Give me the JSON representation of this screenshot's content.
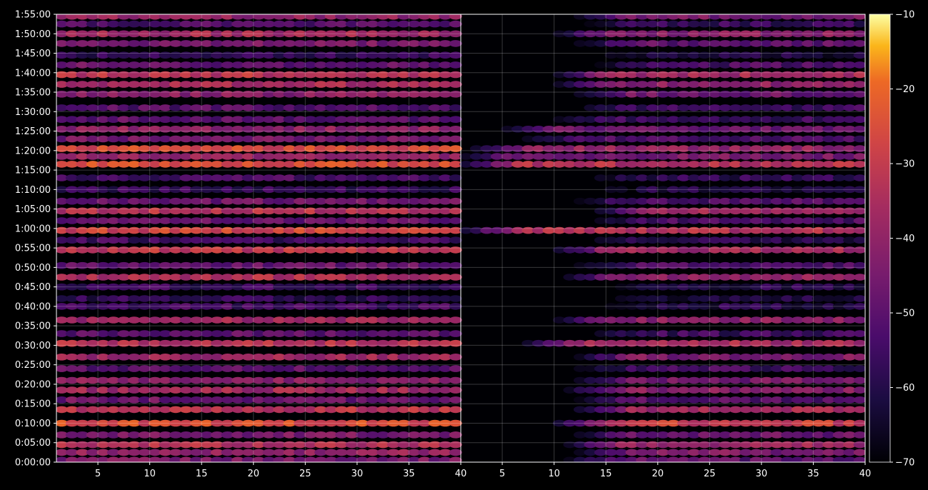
{
  "chart_data": {
    "type": "heatmap",
    "title": "",
    "xlabel": "",
    "ylabel": "",
    "grid": true,
    "panels": [
      {
        "name": "",
        "xlim": [
          1,
          40
        ],
        "x_ticks": [
          "5",
          "10",
          "15",
          "20",
          "25",
          "30",
          "35",
          "40"
        ],
        "x_tick_values": [
          5,
          10,
          15,
          20,
          25,
          30,
          35,
          40
        ]
      },
      {
        "name": "",
        "xlim": [
          1,
          40
        ],
        "x_ticks": [
          "5",
          "10",
          "15",
          "20",
          "25",
          "30",
          "35",
          "40"
        ],
        "x_tick_values": [
          5,
          10,
          15,
          20,
          25,
          30,
          35,
          40
        ]
      }
    ],
    "y_ticks": [
      "0:00:00",
      "0:05:00",
      "0:10:00",
      "0:15:00",
      "0:20:00",
      "0:25:00",
      "0:30:00",
      "0:35:00",
      "0:40:00",
      "0:45:00",
      "0:50:00",
      "0:55:00",
      "1:00:00",
      "1:05:00",
      "1:10:00",
      "1:15:00",
      "1:20:00",
      "1:25:00",
      "1:30:00",
      "1:35:00",
      "1:40:00",
      "1:45:00",
      "1:50:00",
      "1:55:00"
    ],
    "ylim_minutes": [
      0,
      115
    ],
    "colorbar": {
      "range": [
        -70,
        -10
      ],
      "ticks": [
        "−70",
        "−60",
        "−50",
        "−40",
        "−30",
        "−20",
        "−10"
      ],
      "tick_values": [
        -70,
        -60,
        -50,
        -40,
        -30,
        -20,
        -10
      ],
      "colormap": "inferno"
    },
    "bands": [
      {
        "t": 0.5,
        "left": -45,
        "right": -50,
        "right_start": 11
      },
      {
        "t": 2.5,
        "left": -40,
        "right": -44,
        "right_start": 12
      },
      {
        "t": 4.5,
        "left": -34,
        "right": -38,
        "right_start": 11
      },
      {
        "t": 7.0,
        "left": -45,
        "right": -48,
        "right_start": 12
      },
      {
        "t": 10.0,
        "left": -26,
        "right": -30,
        "right_start": 10
      },
      {
        "t": 13.5,
        "left": -33,
        "right": -37,
        "right_start": 12
      },
      {
        "t": 16.0,
        "left": -47,
        "right": -52,
        "right_start": 12
      },
      {
        "t": 18.5,
        "left": -37,
        "right": -42,
        "right_start": 11
      },
      {
        "t": 21.0,
        "left": -42,
        "right": -46,
        "right_start": 12
      },
      {
        "t": 24.0,
        "left": -50,
        "right": -55,
        "right_start": 12
      },
      {
        "t": 27.0,
        "left": -38,
        "right": -44,
        "right_start": 12
      },
      {
        "t": 30.5,
        "left": -33,
        "right": -36,
        "right_start": 7
      },
      {
        "t": 33.0,
        "left": -50,
        "right": -56,
        "right_start": 13
      },
      {
        "t": 36.5,
        "left": -38,
        "right": -42,
        "right_start": 10
      },
      {
        "t": 40.0,
        "left": -55,
        "right": -60,
        "right_start": 15
      },
      {
        "t": 42.0,
        "left": -58,
        "right": -62,
        "right_start": 14
      },
      {
        "t": 45.0,
        "left": -56,
        "right": -60,
        "right_start": 15
      },
      {
        "t": 47.5,
        "left": -34,
        "right": -40,
        "right_start": 11
      },
      {
        "t": 50.5,
        "left": -48,
        "right": -53,
        "right_start": 12
      },
      {
        "t": 54.5,
        "left": -32,
        "right": -37,
        "right_start": 10
      },
      {
        "t": 57.0,
        "left": -55,
        "right": -60,
        "right_start": 13
      },
      {
        "t": 59.5,
        "left": -28,
        "right": -34,
        "right_start": 1
      },
      {
        "t": 62.0,
        "left": -48,
        "right": -53,
        "right_start": 14
      },
      {
        "t": 64.5,
        "left": -33,
        "right": -37,
        "right_start": 14
      },
      {
        "t": 67.0,
        "left": -47,
        "right": -52,
        "right_start": 12
      },
      {
        "t": 70.0,
        "left": -57,
        "right": -62,
        "right_start": 14
      },
      {
        "t": 73.0,
        "left": -54,
        "right": -58,
        "right_start": 13
      },
      {
        "t": 76.5,
        "left": -26,
        "right": -34,
        "right_start": 1
      },
      {
        "t": 78.5,
        "left": -40,
        "right": -45,
        "right_start": 1
      },
      {
        "t": 80.5,
        "left": -27,
        "right": -40,
        "right_start": 2
      },
      {
        "t": 83.0,
        "left": -46,
        "right": -52,
        "right_start": 7
      },
      {
        "t": 85.5,
        "left": -41,
        "right": -47,
        "right_start": 5
      },
      {
        "t": 88.0,
        "left": -50,
        "right": -55,
        "right_start": 10
      },
      {
        "t": 91.0,
        "left": -52,
        "right": -56,
        "right_start": 12
      },
      {
        "t": 94.5,
        "left": -42,
        "right": -47,
        "right_start": 12
      },
      {
        "t": 97.0,
        "left": -36,
        "right": -41,
        "right_start": 10
      },
      {
        "t": 99.5,
        "left": -32,
        "right": -37,
        "right_start": 10
      },
      {
        "t": 102.0,
        "left": -48,
        "right": -53,
        "right_start": 14
      },
      {
        "t": 104.5,
        "left": -57,
        "right": -62,
        "right_start": 14
      },
      {
        "t": 107.5,
        "left": -45,
        "right": -50,
        "right_start": 12
      },
      {
        "t": 110.0,
        "left": -37,
        "right": -42,
        "right_start": 10
      },
      {
        "t": 112.5,
        "left": -52,
        "right": -56,
        "right_start": 13
      },
      {
        "t": 114.5,
        "left": -40,
        "right": -45,
        "right_start": 12
      }
    ]
  }
}
